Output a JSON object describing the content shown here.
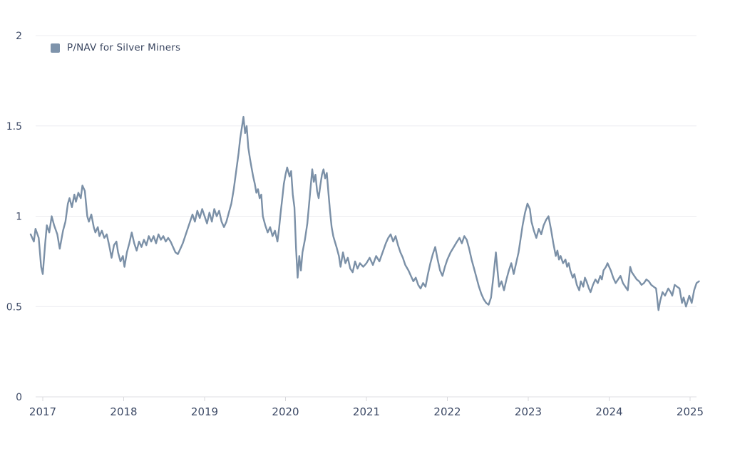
{
  "legend": {
    "label": "P/NAV for Silver Miners"
  },
  "colors": {
    "background": "#ffffff",
    "line": "#7b90a7",
    "legend_swatch": "#7e93ab",
    "tick_text": "#3d4a66",
    "gridline": "#ececf0",
    "axis_line": "#dfdfe3",
    "tick_mark": "#d8d8dc"
  },
  "chart_data": {
    "type": "line",
    "title": "",
    "xlabel": "",
    "ylabel": "",
    "legend_position": "top-left",
    "grid": "horizontal-only",
    "x_ticks": [
      2017,
      2018,
      2019,
      2020,
      2021,
      2022,
      2023,
      2024,
      2025
    ],
    "y_ticks": [
      0,
      0.5,
      1,
      1.5,
      2
    ],
    "ylim": [
      0,
      2
    ],
    "xlim": [
      2016.85,
      2025.2
    ],
    "series": [
      {
        "name": "P/NAV for Silver Miners",
        "color": "#7b90a7",
        "points": [
          [
            2016.85,
            0.9
          ],
          [
            2016.89,
            0.86
          ],
          [
            2016.91,
            0.93
          ],
          [
            2016.95,
            0.88
          ],
          [
            2016.98,
            0.72
          ],
          [
            2017.0,
            0.68
          ],
          [
            2017.03,
            0.85
          ],
          [
            2017.05,
            0.95
          ],
          [
            2017.08,
            0.91
          ],
          [
            2017.11,
            1.0
          ],
          [
            2017.14,
            0.95
          ],
          [
            2017.18,
            0.9
          ],
          [
            2017.21,
            0.82
          ],
          [
            2017.25,
            0.92
          ],
          [
            2017.28,
            0.97
          ],
          [
            2017.31,
            1.07
          ],
          [
            2017.33,
            1.1
          ],
          [
            2017.36,
            1.05
          ],
          [
            2017.39,
            1.12
          ],
          [
            2017.41,
            1.08
          ],
          [
            2017.44,
            1.13
          ],
          [
            2017.47,
            1.1
          ],
          [
            2017.49,
            1.17
          ],
          [
            2017.52,
            1.14
          ],
          [
            2017.55,
            1.0
          ],
          [
            2017.57,
            0.97
          ],
          [
            2017.6,
            1.01
          ],
          [
            2017.63,
            0.94
          ],
          [
            2017.65,
            0.91
          ],
          [
            2017.68,
            0.94
          ],
          [
            2017.7,
            0.89
          ],
          [
            2017.73,
            0.92
          ],
          [
            2017.76,
            0.88
          ],
          [
            2017.79,
            0.9
          ],
          [
            2017.82,
            0.84
          ],
          [
            2017.85,
            0.77
          ],
          [
            2017.88,
            0.84
          ],
          [
            2017.91,
            0.86
          ],
          [
            2017.93,
            0.8
          ],
          [
            2017.96,
            0.75
          ],
          [
            2017.99,
            0.78
          ],
          [
            2018.01,
            0.72
          ],
          [
            2018.04,
            0.8
          ],
          [
            2018.07,
            0.85
          ],
          [
            2018.1,
            0.91
          ],
          [
            2018.13,
            0.85
          ],
          [
            2018.16,
            0.81
          ],
          [
            2018.19,
            0.86
          ],
          [
            2018.22,
            0.83
          ],
          [
            2018.25,
            0.87
          ],
          [
            2018.28,
            0.84
          ],
          [
            2018.31,
            0.89
          ],
          [
            2018.34,
            0.86
          ],
          [
            2018.37,
            0.89
          ],
          [
            2018.4,
            0.85
          ],
          [
            2018.43,
            0.9
          ],
          [
            2018.46,
            0.87
          ],
          [
            2018.49,
            0.89
          ],
          [
            2018.52,
            0.86
          ],
          [
            2018.55,
            0.88
          ],
          [
            2018.58,
            0.86
          ],
          [
            2018.61,
            0.83
          ],
          [
            2018.64,
            0.8
          ],
          [
            2018.67,
            0.79
          ],
          [
            2018.7,
            0.82
          ],
          [
            2018.73,
            0.85
          ],
          [
            2018.76,
            0.89
          ],
          [
            2018.79,
            0.93
          ],
          [
            2018.82,
            0.97
          ],
          [
            2018.85,
            1.01
          ],
          [
            2018.88,
            0.97
          ],
          [
            2018.91,
            1.03
          ],
          [
            2018.94,
            0.99
          ],
          [
            2018.97,
            1.04
          ],
          [
            2019.0,
            1.0
          ],
          [
            2019.03,
            0.96
          ],
          [
            2019.06,
            1.02
          ],
          [
            2019.09,
            0.97
          ],
          [
            2019.12,
            1.04
          ],
          [
            2019.15,
            1.0
          ],
          [
            2019.18,
            1.03
          ],
          [
            2019.21,
            0.97
          ],
          [
            2019.24,
            0.94
          ],
          [
            2019.27,
            0.97
          ],
          [
            2019.3,
            1.02
          ],
          [
            2019.33,
            1.07
          ],
          [
            2019.36,
            1.15
          ],
          [
            2019.39,
            1.25
          ],
          [
            2019.42,
            1.35
          ],
          [
            2019.44,
            1.43
          ],
          [
            2019.46,
            1.49
          ],
          [
            2019.48,
            1.55
          ],
          [
            2019.5,
            1.46
          ],
          [
            2019.52,
            1.5
          ],
          [
            2019.54,
            1.38
          ],
          [
            2019.56,
            1.32
          ],
          [
            2019.58,
            1.27
          ],
          [
            2019.6,
            1.22
          ],
          [
            2019.62,
            1.18
          ],
          [
            2019.64,
            1.13
          ],
          [
            2019.66,
            1.15
          ],
          [
            2019.68,
            1.1
          ],
          [
            2019.7,
            1.12
          ],
          [
            2019.72,
            1.0
          ],
          [
            2019.75,
            0.95
          ],
          [
            2019.78,
            0.91
          ],
          [
            2019.81,
            0.94
          ],
          [
            2019.84,
            0.89
          ],
          [
            2019.87,
            0.92
          ],
          [
            2019.9,
            0.86
          ],
          [
            2019.92,
            0.93
          ],
          [
            2019.94,
            1.02
          ],
          [
            2019.96,
            1.1
          ],
          [
            2019.98,
            1.18
          ],
          [
            2020.0,
            1.23
          ],
          [
            2020.02,
            1.27
          ],
          [
            2020.05,
            1.22
          ],
          [
            2020.07,
            1.25
          ],
          [
            2020.09,
            1.12
          ],
          [
            2020.11,
            1.05
          ],
          [
            2020.13,
            0.82
          ],
          [
            2020.15,
            0.66
          ],
          [
            2020.17,
            0.78
          ],
          [
            2020.19,
            0.7
          ],
          [
            2020.21,
            0.8
          ],
          [
            2020.24,
            0.87
          ],
          [
            2020.27,
            0.96
          ],
          [
            2020.29,
            1.06
          ],
          [
            2020.31,
            1.16
          ],
          [
            2020.33,
            1.26
          ],
          [
            2020.35,
            1.19
          ],
          [
            2020.37,
            1.23
          ],
          [
            2020.39,
            1.14
          ],
          [
            2020.41,
            1.1
          ],
          [
            2020.43,
            1.17
          ],
          [
            2020.45,
            1.23
          ],
          [
            2020.47,
            1.26
          ],
          [
            2020.49,
            1.21
          ],
          [
            2020.51,
            1.24
          ],
          [
            2020.53,
            1.13
          ],
          [
            2020.55,
            1.03
          ],
          [
            2020.57,
            0.94
          ],
          [
            2020.59,
            0.89
          ],
          [
            2020.61,
            0.86
          ],
          [
            2020.63,
            0.83
          ],
          [
            2020.66,
            0.78
          ],
          [
            2020.68,
            0.72
          ],
          [
            2020.71,
            0.8
          ],
          [
            2020.74,
            0.74
          ],
          [
            2020.77,
            0.77
          ],
          [
            2020.8,
            0.71
          ],
          [
            2020.83,
            0.69
          ],
          [
            2020.86,
            0.75
          ],
          [
            2020.89,
            0.71
          ],
          [
            2020.92,
            0.74
          ],
          [
            2020.96,
            0.72
          ],
          [
            2021.0,
            0.74
          ],
          [
            2021.04,
            0.77
          ],
          [
            2021.08,
            0.73
          ],
          [
            2021.12,
            0.78
          ],
          [
            2021.16,
            0.75
          ],
          [
            2021.2,
            0.8
          ],
          [
            2021.24,
            0.85
          ],
          [
            2021.27,
            0.88
          ],
          [
            2021.3,
            0.9
          ],
          [
            2021.33,
            0.86
          ],
          [
            2021.36,
            0.89
          ],
          [
            2021.39,
            0.84
          ],
          [
            2021.42,
            0.8
          ],
          [
            2021.45,
            0.77
          ],
          [
            2021.48,
            0.73
          ],
          [
            2021.52,
            0.7
          ],
          [
            2021.55,
            0.67
          ],
          [
            2021.58,
            0.64
          ],
          [
            2021.61,
            0.66
          ],
          [
            2021.64,
            0.62
          ],
          [
            2021.67,
            0.6
          ],
          [
            2021.7,
            0.63
          ],
          [
            2021.73,
            0.61
          ],
          [
            2021.76,
            0.68
          ],
          [
            2021.79,
            0.74
          ],
          [
            2021.82,
            0.79
          ],
          [
            2021.85,
            0.83
          ],
          [
            2021.88,
            0.76
          ],
          [
            2021.91,
            0.7
          ],
          [
            2021.94,
            0.67
          ],
          [
            2021.97,
            0.72
          ],
          [
            2022.0,
            0.76
          ],
          [
            2022.04,
            0.8
          ],
          [
            2022.08,
            0.83
          ],
          [
            2022.12,
            0.86
          ],
          [
            2022.15,
            0.88
          ],
          [
            2022.18,
            0.85
          ],
          [
            2022.21,
            0.89
          ],
          [
            2022.24,
            0.87
          ],
          [
            2022.27,
            0.82
          ],
          [
            2022.3,
            0.76
          ],
          [
            2022.33,
            0.71
          ],
          [
            2022.36,
            0.66
          ],
          [
            2022.39,
            0.61
          ],
          [
            2022.42,
            0.57
          ],
          [
            2022.45,
            0.54
          ],
          [
            2022.48,
            0.52
          ],
          [
            2022.51,
            0.51
          ],
          [
            2022.54,
            0.55
          ],
          [
            2022.57,
            0.67
          ],
          [
            2022.6,
            0.8
          ],
          [
            2022.62,
            0.7
          ],
          [
            2022.64,
            0.61
          ],
          [
            2022.67,
            0.64
          ],
          [
            2022.7,
            0.59
          ],
          [
            2022.73,
            0.65
          ],
          [
            2022.76,
            0.7
          ],
          [
            2022.79,
            0.74
          ],
          [
            2022.82,
            0.68
          ],
          [
            2022.85,
            0.74
          ],
          [
            2022.88,
            0.8
          ],
          [
            2022.9,
            0.86
          ],
          [
            2022.93,
            0.95
          ],
          [
            2022.96,
            1.02
          ],
          [
            2022.99,
            1.07
          ],
          [
            2023.02,
            1.04
          ],
          [
            2023.04,
            0.97
          ],
          [
            2023.07,
            0.92
          ],
          [
            2023.1,
            0.88
          ],
          [
            2023.13,
            0.93
          ],
          [
            2023.16,
            0.9
          ],
          [
            2023.19,
            0.95
          ],
          [
            2023.22,
            0.98
          ],
          [
            2023.25,
            1.0
          ],
          [
            2023.28,
            0.93
          ],
          [
            2023.31,
            0.85
          ],
          [
            2023.34,
            0.78
          ],
          [
            2023.36,
            0.81
          ],
          [
            2023.38,
            0.76
          ],
          [
            2023.4,
            0.78
          ],
          [
            2023.43,
            0.74
          ],
          [
            2023.46,
            0.76
          ],
          [
            2023.48,
            0.72
          ],
          [
            2023.5,
            0.74
          ],
          [
            2023.52,
            0.7
          ],
          [
            2023.55,
            0.66
          ],
          [
            2023.57,
            0.68
          ],
          [
            2023.6,
            0.62
          ],
          [
            2023.63,
            0.59
          ],
          [
            2023.65,
            0.64
          ],
          [
            2023.68,
            0.61
          ],
          [
            2023.7,
            0.66
          ],
          [
            2023.72,
            0.64
          ],
          [
            2023.75,
            0.6
          ],
          [
            2023.77,
            0.58
          ],
          [
            2023.8,
            0.62
          ],
          [
            2023.83,
            0.65
          ],
          [
            2023.86,
            0.63
          ],
          [
            2023.89,
            0.67
          ],
          [
            2023.91,
            0.65
          ],
          [
            2023.93,
            0.7
          ],
          [
            2023.96,
            0.72
          ],
          [
            2023.98,
            0.74
          ],
          [
            2024.0,
            0.72
          ],
          [
            2024.02,
            0.7
          ],
          [
            2024.05,
            0.66
          ],
          [
            2024.08,
            0.63
          ],
          [
            2024.11,
            0.65
          ],
          [
            2024.14,
            0.67
          ],
          [
            2024.17,
            0.63
          ],
          [
            2024.2,
            0.61
          ],
          [
            2024.23,
            0.59
          ],
          [
            2024.26,
            0.72
          ],
          [
            2024.28,
            0.69
          ],
          [
            2024.31,
            0.67
          ],
          [
            2024.34,
            0.65
          ],
          [
            2024.37,
            0.64
          ],
          [
            2024.4,
            0.62
          ],
          [
            2024.43,
            0.63
          ],
          [
            2024.46,
            0.65
          ],
          [
            2024.49,
            0.64
          ],
          [
            2024.52,
            0.62
          ],
          [
            2024.55,
            0.61
          ],
          [
            2024.58,
            0.6
          ],
          [
            2024.61,
            0.48
          ],
          [
            2024.63,
            0.53
          ],
          [
            2024.66,
            0.58
          ],
          [
            2024.69,
            0.56
          ],
          [
            2024.73,
            0.6
          ],
          [
            2024.76,
            0.58
          ],
          [
            2024.78,
            0.56
          ],
          [
            2024.81,
            0.62
          ],
          [
            2024.84,
            0.61
          ],
          [
            2024.87,
            0.6
          ],
          [
            2024.9,
            0.52
          ],
          [
            2024.92,
            0.55
          ],
          [
            2024.95,
            0.5
          ],
          [
            2024.97,
            0.53
          ],
          [
            2024.99,
            0.56
          ],
          [
            2025.02,
            0.52
          ],
          [
            2025.05,
            0.59
          ],
          [
            2025.08,
            0.63
          ],
          [
            2025.11,
            0.64
          ]
        ]
      }
    ]
  }
}
